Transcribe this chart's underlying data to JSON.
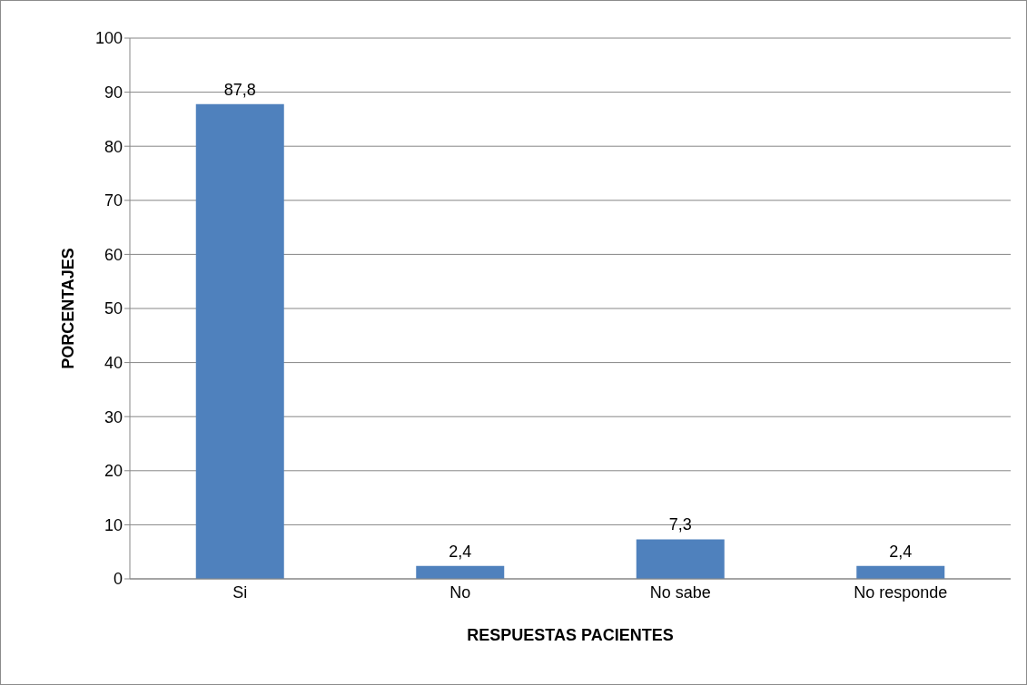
{
  "chart_data": {
    "type": "bar",
    "xlabel": "RESPUESTAS PACIENTES",
    "ylabel": "PORCENTAJES",
    "categories": [
      "Si",
      "No",
      "No sabe",
      "No responde"
    ],
    "values": [
      87.8,
      2.4,
      7.3,
      2.4
    ],
    "value_labels": [
      "87,8",
      "2,4",
      "7,3",
      "2,4"
    ],
    "color": "#4f81bd",
    "ylim": [
      0,
      100
    ],
    "yticks": [
      0,
      10,
      20,
      30,
      40,
      50,
      60,
      70,
      80,
      90,
      100
    ],
    "grid": "y"
  }
}
